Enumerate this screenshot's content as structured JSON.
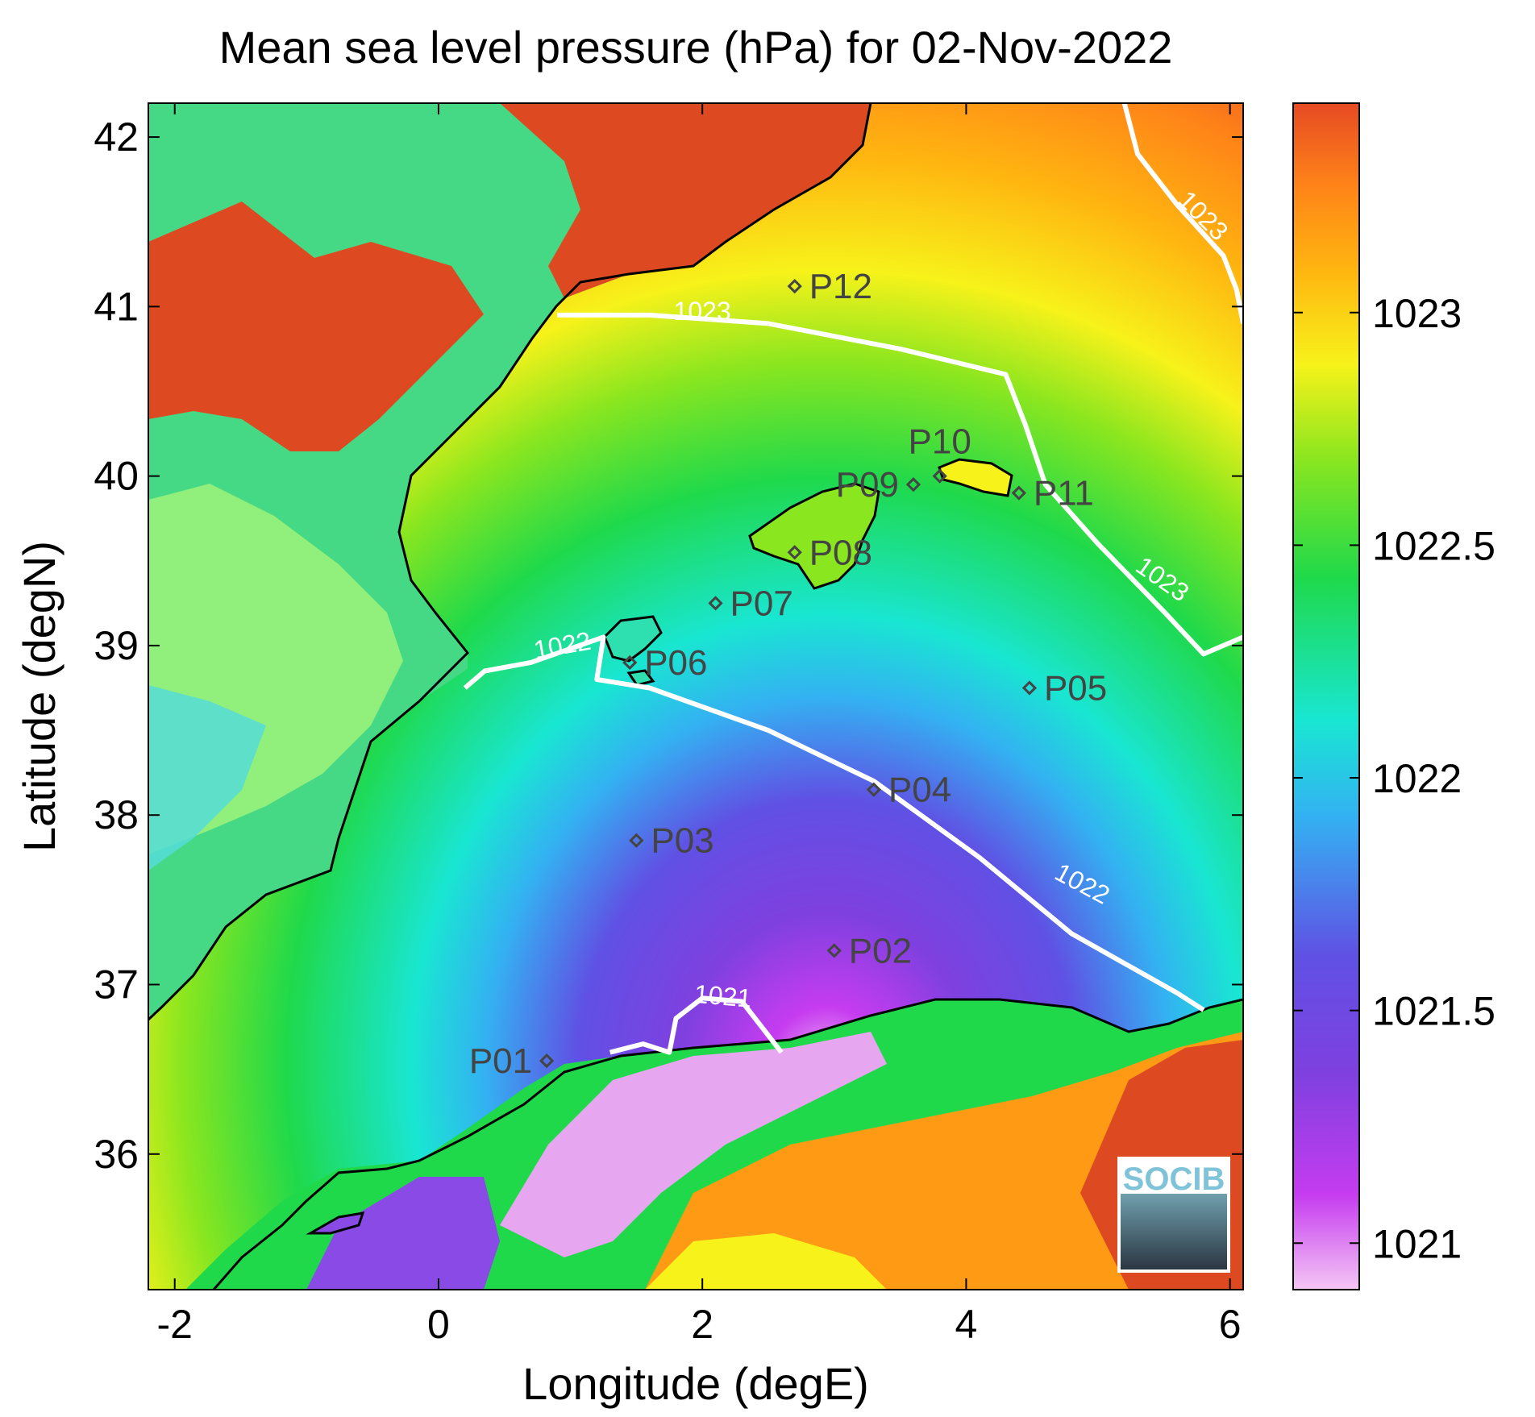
{
  "title": "Mean sea level pressure (hPa) for 02-Nov-2022",
  "logo_text": "SOCIB",
  "map": {
    "lon_range": [
      -2.2,
      6.1
    ],
    "lat_range": [
      35.2,
      42.2
    ],
    "xlabel": "Longitude (degE)",
    "ylabel": "Latitude (degN)",
    "x_ticks": [
      {
        "value": -2,
        "label": "-2"
      },
      {
        "value": 0,
        "label": "0"
      },
      {
        "value": 2,
        "label": "2"
      },
      {
        "value": 4,
        "label": "4"
      },
      {
        "value": 6,
        "label": "6"
      }
    ],
    "y_ticks": [
      {
        "value": 36,
        "label": "36"
      },
      {
        "value": 37,
        "label": "37"
      },
      {
        "value": 38,
        "label": "38"
      },
      {
        "value": 39,
        "label": "39"
      },
      {
        "value": 40,
        "label": "40"
      },
      {
        "value": 41,
        "label": "41"
      },
      {
        "value": 42,
        "label": "42"
      }
    ]
  },
  "colorbar": {
    "range": [
      1020.9,
      1023.45
    ],
    "ticks": [
      {
        "value": 1021,
        "label": "1021"
      },
      {
        "value": 1021.5,
        "label": "1021.5"
      },
      {
        "value": 1022,
        "label": "1022"
      },
      {
        "value": 1022.5,
        "label": "1022.5"
      },
      {
        "value": 1023,
        "label": "1023"
      }
    ],
    "colors": [
      "#f4c6f4",
      "#c63cf0",
      "#8040e0",
      "#6050e4",
      "#33b2f2",
      "#19e6d2",
      "#1fd94b",
      "#8ae61f",
      "#f7f21a",
      "#ffb510",
      "#ff8418",
      "#e64a23"
    ]
  },
  "stations": [
    {
      "name": "P01",
      "lon": 0.82,
      "lat": 36.55,
      "label_side": "left"
    },
    {
      "name": "P02",
      "lon": 3.0,
      "lat": 37.2,
      "label_side": "right"
    },
    {
      "name": "P03",
      "lon": 1.5,
      "lat": 37.85,
      "label_side": "right"
    },
    {
      "name": "P04",
      "lon": 3.3,
      "lat": 38.15,
      "label_side": "right"
    },
    {
      "name": "P05",
      "lon": 4.48,
      "lat": 38.75,
      "label_side": "right"
    },
    {
      "name": "P06",
      "lon": 1.45,
      "lat": 38.9,
      "label_side": "right"
    },
    {
      "name": "P07",
      "lon": 2.1,
      "lat": 39.25,
      "label_side": "right"
    },
    {
      "name": "P08",
      "lon": 2.7,
      "lat": 39.55,
      "label_side": "right"
    },
    {
      "name": "P09",
      "lon": 3.6,
      "lat": 39.95,
      "label_side": "left"
    },
    {
      "name": "P10",
      "lon": 3.8,
      "lat": 40.0,
      "label_side": "above"
    },
    {
      "name": "P11",
      "lon": 4.4,
      "lat": 39.9,
      "label_side": "right"
    },
    {
      "name": "P12",
      "lon": 2.7,
      "lat": 41.12,
      "label_side": "right"
    }
  ],
  "contours": [
    {
      "level": "1023",
      "points": [
        [
          0.9,
          40.95
        ],
        [
          1.6,
          40.95
        ],
        [
          2.5,
          40.9
        ],
        [
          3.5,
          40.75
        ],
        [
          4.3,
          40.6
        ],
        [
          4.45,
          40.3
        ],
        [
          4.6,
          39.95
        ],
        [
          5.0,
          39.6
        ],
        [
          5.5,
          39.2
        ],
        [
          5.8,
          38.95
        ],
        [
          6.1,
          39.05
        ]
      ],
      "label_lon": 2.0,
      "label_lat": 40.92,
      "label_angle": 0
    },
    {
      "level": "1023",
      "points": [
        [
          5.2,
          42.2
        ],
        [
          5.3,
          41.9
        ],
        [
          5.6,
          41.6
        ],
        [
          5.95,
          41.3
        ],
        [
          6.05,
          41.1
        ],
        [
          6.1,
          40.9
        ]
      ],
      "label_lon": 5.75,
      "label_lat": 41.5,
      "label_angle": 45
    },
    {
      "level": "1023",
      "points": [],
      "label_lon": 5.45,
      "label_lat": 39.35,
      "label_angle": 35
    },
    {
      "level": "1022",
      "points": [
        [
          0.2,
          38.75
        ],
        [
          0.35,
          38.85
        ],
        [
          0.7,
          38.9
        ],
        [
          1.25,
          39.05
        ],
        [
          1.2,
          38.8
        ],
        [
          1.6,
          38.75
        ],
        [
          2.5,
          38.5
        ],
        [
          3.3,
          38.2
        ],
        [
          4.1,
          37.75
        ],
        [
          4.8,
          37.3
        ],
        [
          5.6,
          36.95
        ],
        [
          5.8,
          36.85
        ]
      ],
      "label_lon": 0.95,
      "label_lat": 38.95,
      "label_angle": -10
    },
    {
      "level": "1022",
      "points": [],
      "label_lon": 4.85,
      "label_lat": 37.55,
      "label_angle": 28
    },
    {
      "level": "1021",
      "points": [
        [
          1.3,
          36.6
        ],
        [
          1.55,
          36.65
        ],
        [
          1.75,
          36.6
        ],
        [
          1.8,
          36.8
        ],
        [
          2.0,
          36.92
        ],
        [
          2.3,
          36.9
        ],
        [
          2.5,
          36.7
        ],
        [
          2.6,
          36.6
        ]
      ],
      "label_lon": 2.15,
      "label_lat": 36.88,
      "label_angle": 5
    }
  ]
}
